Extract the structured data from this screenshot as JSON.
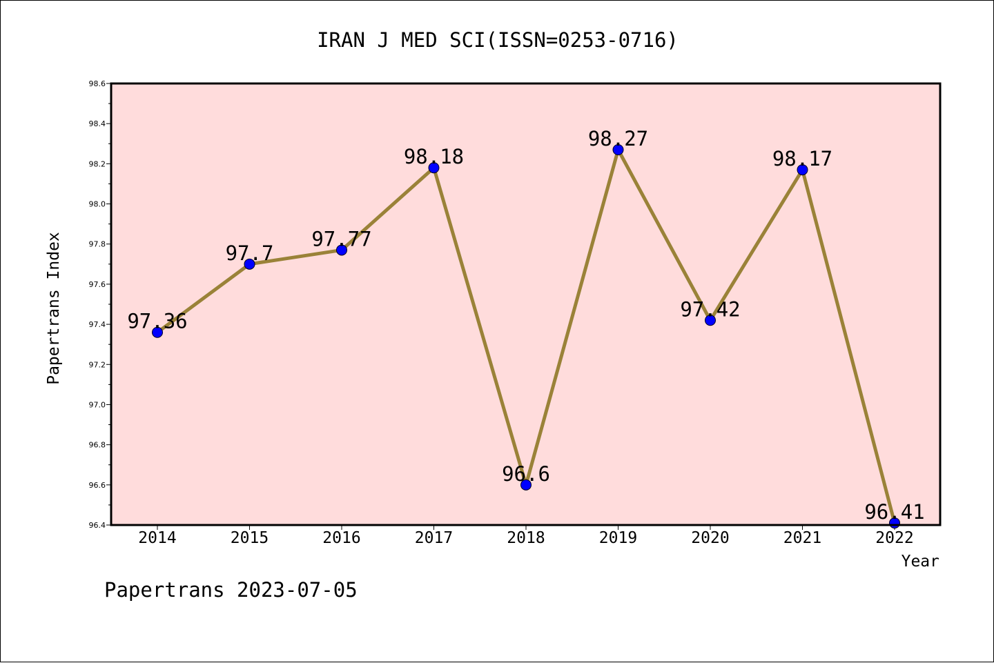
{
  "chart_data": {
    "type": "line",
    "title": "IRAN J MED SCI(ISSN=0253-0716)",
    "xlabel": "Year",
    "ylabel": "Papertrans Index",
    "categories": [
      "2014",
      "2015",
      "2016",
      "2017",
      "2018",
      "2019",
      "2020",
      "2021",
      "2022"
    ],
    "series": [
      {
        "values": [
          97.36,
          97.7,
          97.77,
          98.18,
          96.6,
          98.27,
          97.42,
          98.17,
          96.41
        ]
      }
    ],
    "data_labels": [
      "97.36",
      "97.7",
      "97.77",
      "98.18",
      "96.6",
      "98.27",
      "97.42",
      "98.17",
      "96.41"
    ],
    "ylim": [
      96.4,
      98.6
    ],
    "yticks": [
      "96.4",
      "96.6",
      "96.8",
      "97.0",
      "97.2",
      "97.4",
      "97.6",
      "97.8",
      "98.0",
      "98.2",
      "98.4",
      "98.6"
    ],
    "grid": false,
    "footer": "Papertrans 2023-07-05",
    "colors": {
      "plot_background": "#ffdcdc",
      "line": "#9a8238",
      "marker": "#0000ff",
      "axis": "#000000"
    }
  }
}
